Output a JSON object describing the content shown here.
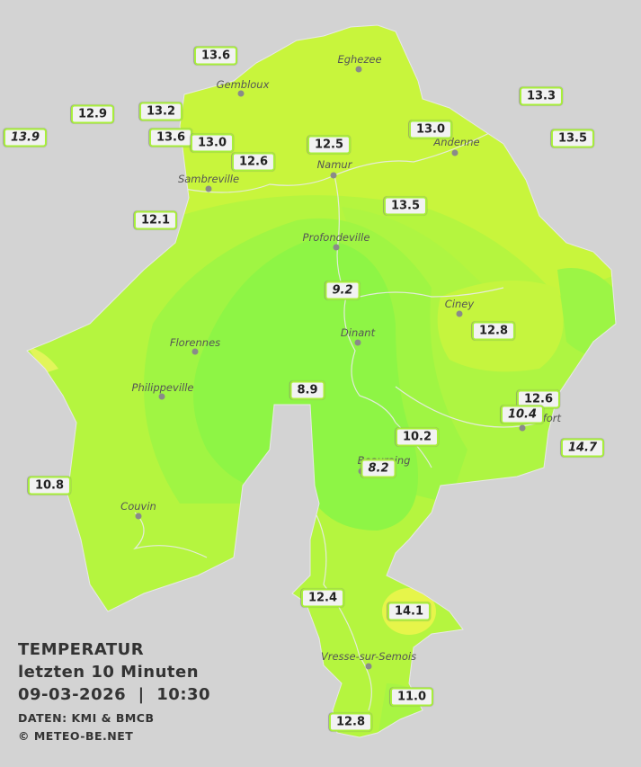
{
  "cities": [
    "Eghezee",
    "Gembloux",
    "Andenne",
    "Namur",
    "Sambreville",
    "Profondeville",
    "Ciney",
    "Dinant",
    "Florennes",
    "Philippeville",
    "Rochefort",
    "Beauraing",
    "Couvin",
    "Vresse-sur-Semois"
  ],
  "stations": [
    {
      "label": "13.6",
      "italic": false
    },
    {
      "label": "12.9",
      "italic": false
    },
    {
      "label": "13.2",
      "italic": false
    },
    {
      "label": "13.9",
      "italic": true
    },
    {
      "label": "13.6",
      "italic": false
    },
    {
      "label": "13.0",
      "italic": false
    },
    {
      "label": "12.6",
      "italic": false
    },
    {
      "label": "12.5",
      "italic": false
    },
    {
      "label": "13.0",
      "italic": false
    },
    {
      "label": "13.3",
      "italic": false
    },
    {
      "label": "13.5",
      "italic": false
    },
    {
      "label": "13.5",
      "italic": false
    },
    {
      "label": "12.1",
      "italic": false
    },
    {
      "label": "9.2",
      "italic": true
    },
    {
      "label": "12.8",
      "italic": false
    },
    {
      "label": "8.9",
      "italic": false
    },
    {
      "label": "12.6",
      "italic": false
    },
    {
      "label": "10.4",
      "italic": true
    },
    {
      "label": "14.7",
      "italic": true
    },
    {
      "label": "10.2",
      "italic": false
    },
    {
      "label": "8.2",
      "italic": true
    },
    {
      "label": "10.8",
      "italic": false
    },
    {
      "label": "12.4",
      "italic": false
    },
    {
      "label": "14.1",
      "italic": false
    },
    {
      "label": "11.0",
      "italic": false
    },
    {
      "label": "12.8",
      "italic": false
    }
  ],
  "info": {
    "title": "TEMPERATUR",
    "period": "letzten 10 Minuten",
    "datetime": "09-03-2026  |  10:30",
    "source": "DATEN: KMI & BMCB",
    "copyright": "© METEO-BE.NET"
  }
}
